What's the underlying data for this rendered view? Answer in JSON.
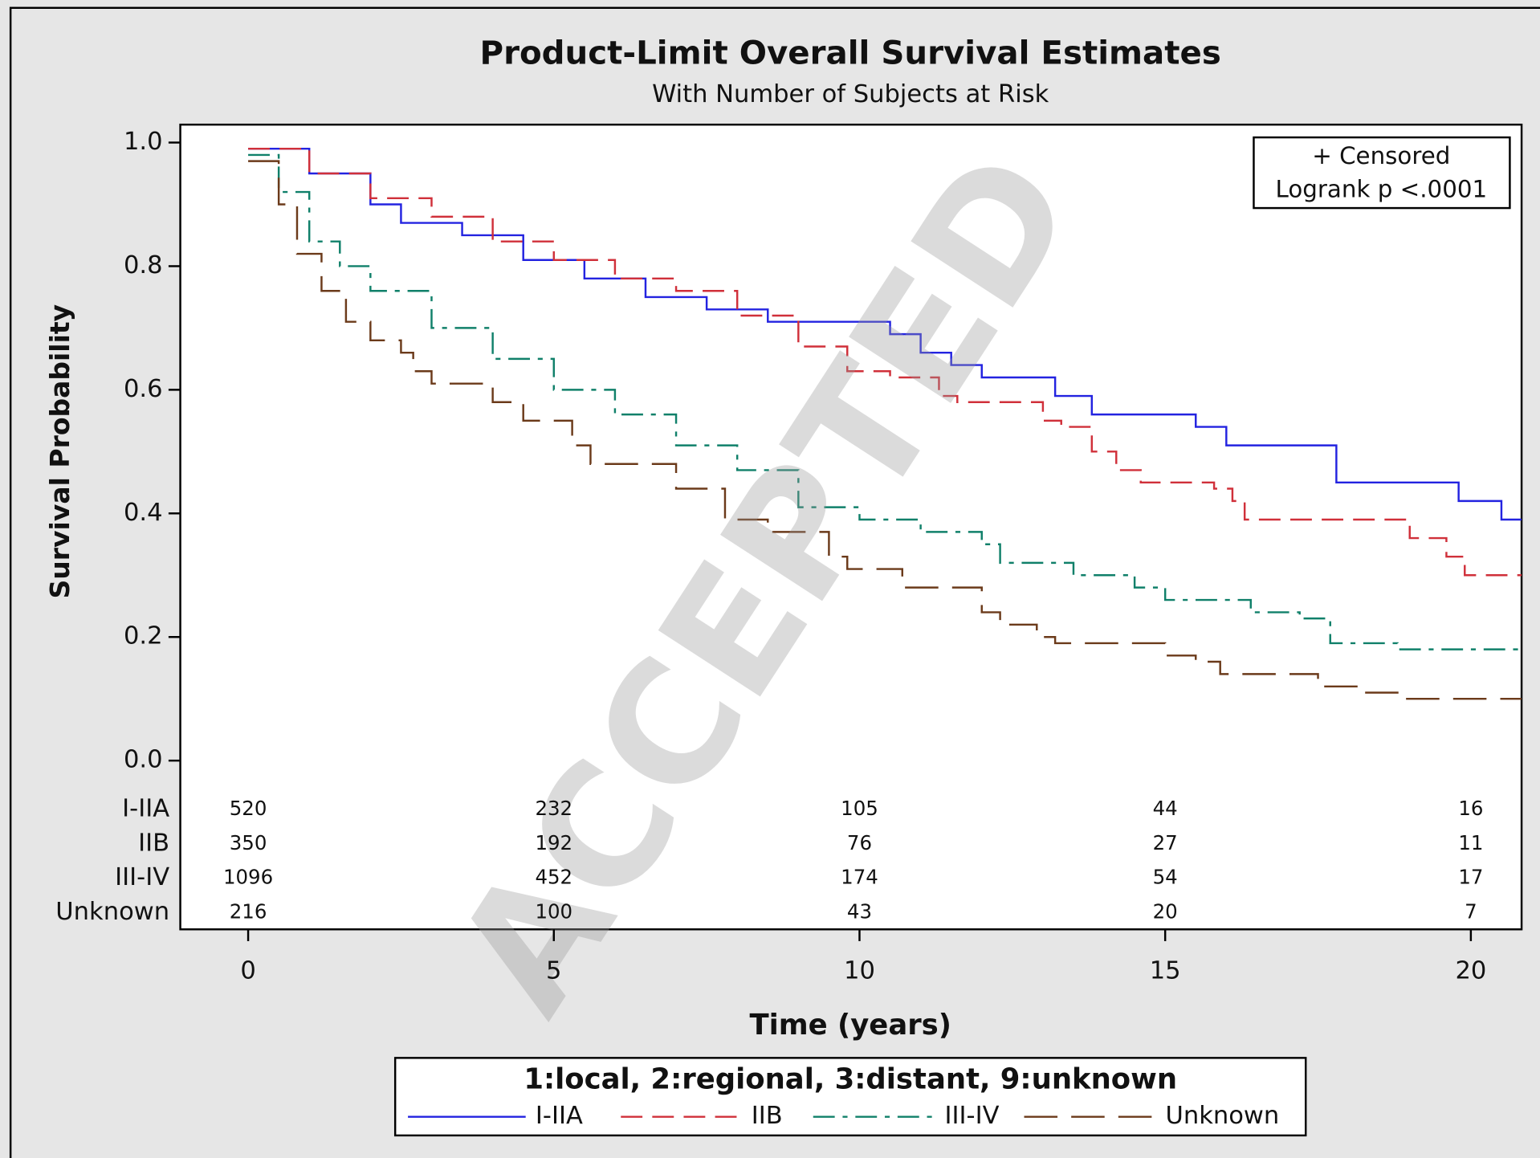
{
  "chart_data": {
    "type": "step",
    "title": "Product-Limit Overall Survival Estimates",
    "subtitle": "With Number of Subjects at Risk",
    "x_label": "Time (years)",
    "y_label": "Survival Probability",
    "xlim": [
      -1.11,
      20.83
    ],
    "ylim": [
      -0.273,
      1.029
    ],
    "xticks": [
      0,
      5,
      10,
      15,
      20
    ],
    "yticks": [
      {
        "value": 0,
        "label": "0.0"
      },
      0.2,
      0.4,
      0.6,
      0.8,
      {
        "value": 1,
        "label": "1.0"
      }
    ],
    "legend_title": "1:local, 2:regional, 3:distant, 9:unknown",
    "annotations": [
      "+ Censored",
      "Logrank p <.0001"
    ],
    "watermark": "ACCEPTED",
    "series": [
      {
        "name": "I-IIA",
        "color": "#2323e0",
        "line_style": "solid",
        "x": [
          0,
          1,
          2,
          2.5,
          3.5,
          4.5,
          5.5,
          6.5,
          7.5,
          8.5,
          10,
          10.5,
          11,
          11.5,
          12,
          12.8,
          13.2,
          13.8,
          15.5,
          16,
          17.5,
          17.8,
          19.5,
          19.8,
          20.5,
          20.83
        ],
        "values": [
          0.99,
          0.95,
          0.9,
          0.87,
          0.85,
          0.81,
          0.78,
          0.75,
          0.73,
          0.71,
          0.71,
          0.69,
          0.66,
          0.64,
          0.62,
          0.62,
          0.59,
          0.56,
          0.54,
          0.51,
          0.51,
          0.45,
          0.45,
          0.42,
          0.39,
          0.39
        ]
      },
      {
        "name": "IIB",
        "color": "#d0303a",
        "line_style": "dashed",
        "x": [
          0,
          1,
          2,
          3,
          4,
          5,
          6,
          7,
          8,
          9,
          9.8,
          10.5,
          11.3,
          11.6,
          12.8,
          13,
          13.3,
          13.8,
          14.2,
          14.6,
          15.8,
          16.1,
          16.3,
          18.8,
          19,
          19.6,
          19.9,
          20.83
        ],
        "values": [
          0.99,
          0.95,
          0.91,
          0.88,
          0.84,
          0.81,
          0.78,
          0.76,
          0.72,
          0.67,
          0.63,
          0.62,
          0.59,
          0.58,
          0.58,
          0.55,
          0.54,
          0.5,
          0.47,
          0.45,
          0.44,
          0.42,
          0.39,
          0.39,
          0.36,
          0.33,
          0.3,
          0.3
        ]
      },
      {
        "name": "III-IV",
        "color": "#10806a",
        "line_style": "dashdot",
        "x": [
          0,
          0.5,
          1,
          1.5,
          2,
          3,
          4,
          5,
          6,
          7,
          8,
          9,
          10,
          11,
          12,
          12.3,
          13.5,
          14.5,
          15,
          16.4,
          17.2,
          17.7,
          18.6,
          18.8,
          20.83
        ],
        "values": [
          0.98,
          0.92,
          0.84,
          0.8,
          0.76,
          0.7,
          0.65,
          0.6,
          0.56,
          0.51,
          0.47,
          0.41,
          0.39,
          0.37,
          0.35,
          0.32,
          0.3,
          0.28,
          0.26,
          0.24,
          0.23,
          0.19,
          0.19,
          0.18,
          0.18
        ]
      },
      {
        "name": "Unknown",
        "color": "#6b3a1a",
        "line_style": "longdash",
        "x": [
          0,
          0.5,
          0.8,
          1.2,
          1.6,
          2,
          2.5,
          2.7,
          3,
          4,
          4.5,
          5.3,
          5.6,
          7,
          7.8,
          8.5,
          9.5,
          9.8,
          10.7,
          12,
          12.3,
          12.9,
          13.2,
          15,
          15.5,
          15.9,
          17.5,
          18.2,
          18.8,
          20.83
        ],
        "values": [
          0.97,
          0.9,
          0.82,
          0.76,
          0.71,
          0.68,
          0.66,
          0.63,
          0.61,
          0.58,
          0.55,
          0.51,
          0.48,
          0.44,
          0.39,
          0.37,
          0.33,
          0.31,
          0.28,
          0.24,
          0.22,
          0.2,
          0.19,
          0.17,
          0.16,
          0.14,
          0.12,
          0.11,
          0.1,
          0.1
        ]
      }
    ],
    "at_risk": {
      "times": [
        0,
        5,
        10,
        15,
        20
      ],
      "counts": [
        [
          520,
          232,
          105,
          44,
          16
        ],
        [
          350,
          192,
          76,
          27,
          11
        ],
        [
          1096,
          452,
          174,
          54,
          17
        ],
        [
          216,
          100,
          43,
          20,
          7
        ]
      ]
    }
  }
}
